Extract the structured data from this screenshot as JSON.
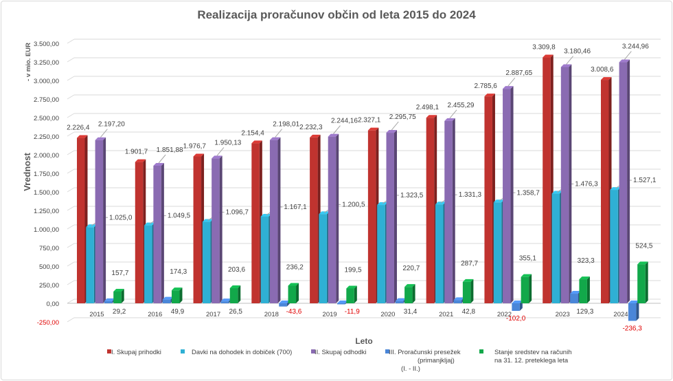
{
  "chart_data": {
    "type": "bar",
    "title": "Realizacija proračunov občin od leta 2015 do 2024",
    "xlabel": "Leto",
    "ylabel": "Vrednost",
    "ylabel_unit": "- v mio. EUR",
    "ylim": [
      -250,
      3500
    ],
    "yticks": [
      "-250,00",
      "0,00",
      "250,00",
      "500,00",
      "750,00",
      "1.000,00",
      "1.250,00",
      "1.500,00",
      "1.750,00",
      "2.000,00",
      "2.250,00",
      "2.500,00",
      "2.750,00",
      "3.000,00",
      "3.250,00",
      "3.500,00"
    ],
    "grid": true,
    "legend_position": "bottom",
    "categories": [
      "2015",
      "2016",
      "2017",
      "2018",
      "2019",
      "2020",
      "2021",
      "2022",
      "2023",
      "2024"
    ],
    "series": [
      {
        "name": "I. Skupaj prihodki",
        "color": "#c0332f",
        "values": [
          2226.4,
          1901.7,
          1976.7,
          2154.4,
          2232.3,
          2327.1,
          2498.1,
          2785.6,
          3309.8,
          3008.6
        ],
        "labels": [
          "2.226,4",
          "1.901,7",
          "1.976,7",
          "2.154,4",
          "2.232,3",
          "2.327,1",
          "2.498,1",
          "2.785,6",
          "3.309,8",
          "3.008,6"
        ]
      },
      {
        "name": "Davki na dohodek in dobiček (700)",
        "color": "#2fb0d4",
        "values": [
          1025.0,
          1049.5,
          1096.7,
          1167.1,
          1200.5,
          1323.5,
          1331.3,
          1358.7,
          1476.3,
          1527.1
        ],
        "labels": [
          "1.025,0",
          "1.049,5",
          "1.096,7",
          "1.167,1",
          "1.200,5",
          "1.323,5",
          "1.331,3",
          "1.358,7",
          "1.476,3",
          "1.527,1"
        ]
      },
      {
        "name": "II. Skupaj odhodki",
        "color": "#8a6bb2",
        "values": [
          2197.2,
          1851.88,
          1950.13,
          2198.01,
          2244.16,
          2295.75,
          2455.29,
          2887.65,
          3180.46,
          3244.96
        ],
        "labels": [
          "2.197,20",
          "1.851,88",
          "1.950,13",
          "2.198,01",
          "2.244,16",
          "2.295,75",
          "2.455,29",
          "2.887,65",
          "3.180,46",
          "3.244,96"
        ]
      },
      {
        "name": "III. Proračunski presežek (primanjkljaj) (I. - II.)",
        "legend_lines": [
          "III. Proračunski presežek",
          "(primanjkljaj)",
          "(I. - II.)"
        ],
        "color": "#4a86d8",
        "values": [
          29.2,
          49.9,
          26.5,
          -43.6,
          -11.9,
          31.4,
          42.8,
          -102.0,
          129.3,
          -236.3
        ],
        "labels": [
          "29,2",
          "49,9",
          "26,5",
          "-43,6",
          "-11,9",
          "31,4",
          "42,8",
          "-102,0",
          "129,3",
          "-236,3"
        ]
      },
      {
        "name": "Stanje sredstev na računih na 31. 12. preteklega leta",
        "legend_lines": [
          "Stanje sredstev na računih",
          "na 31. 12. preteklega leta"
        ],
        "color": "#12a84a",
        "values": [
          157.7,
          174.3,
          203.6,
          236.2,
          199.5,
          220.7,
          287.7,
          355.1,
          323.3,
          524.5
        ],
        "labels": [
          "157,7",
          "174,3",
          "203,6",
          "236,2",
          "199,5",
          "220,7",
          "287,7",
          "355,1",
          "323,3",
          "524,5"
        ]
      }
    ],
    "negative_label_color": "#e00000"
  }
}
